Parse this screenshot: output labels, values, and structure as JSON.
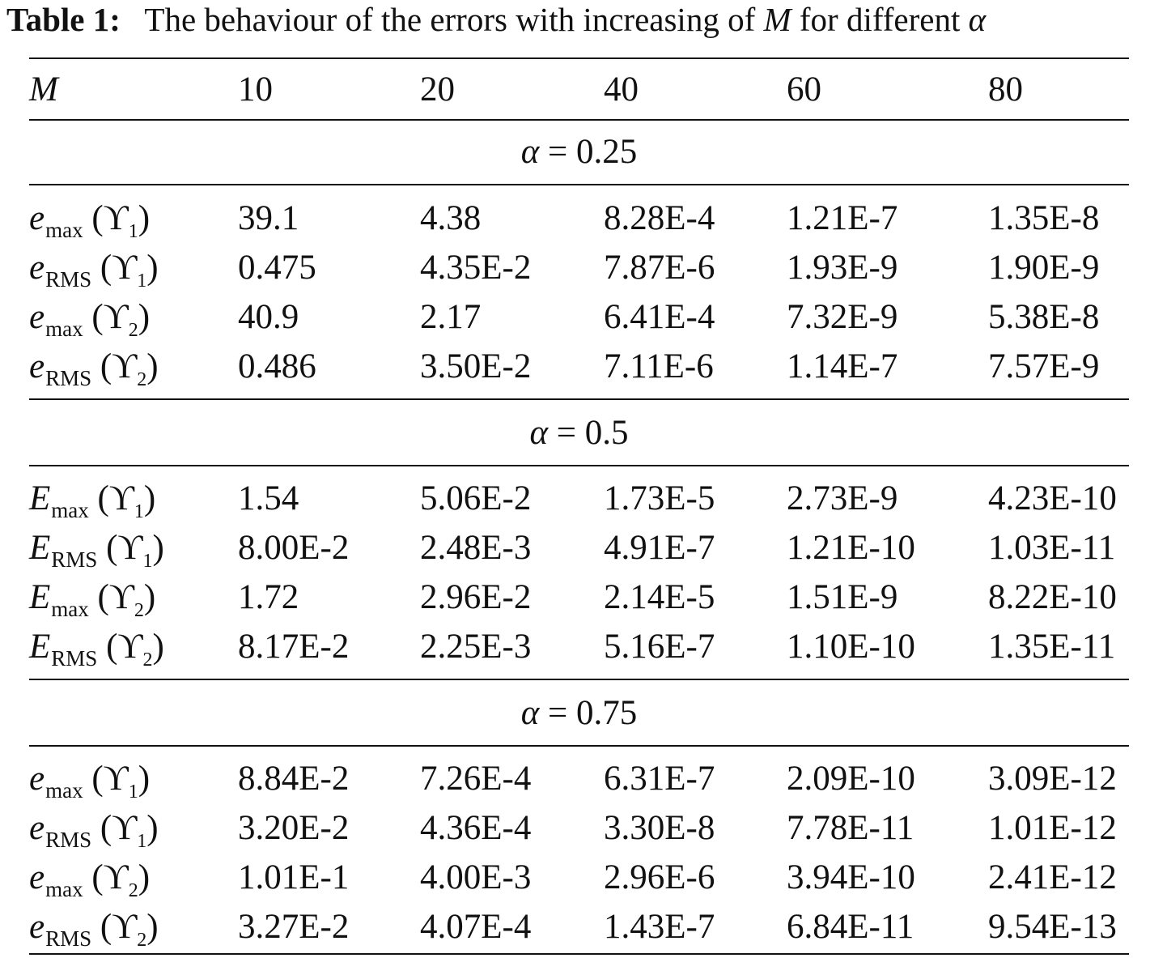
{
  "caption": {
    "label": "Table 1:",
    "text_before": "The behaviour of the errors with increasing of",
    "var_m": "M",
    "text_middle": "for different",
    "var_alpha": "α"
  },
  "header": {
    "m_label": "M",
    "columns": [
      "10",
      "20",
      "40",
      "60",
      "80"
    ]
  },
  "sections": [
    {
      "alpha_symbol": "α",
      "equals": "=",
      "alpha_value": "0.25",
      "rows": [
        {
          "letter": "e",
          "sub": "max",
          "ups": "ϒ",
          "ups_sub": "1",
          "values": [
            "39.1",
            "4.38",
            "8.28E-4",
            "1.21E-7",
            "1.35E-8"
          ]
        },
        {
          "letter": "e",
          "sub": "RMS",
          "ups": "ϒ",
          "ups_sub": "1",
          "values": [
            "0.475",
            "4.35E-2",
            "7.87E-6",
            "1.93E-9",
            "1.90E-9"
          ]
        },
        {
          "letter": "e",
          "sub": "max",
          "ups": "ϒ",
          "ups_sub": "2",
          "values": [
            "40.9",
            "2.17",
            "6.41E-4",
            "7.32E-9",
            "5.38E-8"
          ]
        },
        {
          "letter": "e",
          "sub": "RMS",
          "ups": "ϒ",
          "ups_sub": "2",
          "values": [
            "0.486",
            "3.50E-2",
            "7.11E-6",
            "1.14E-7",
            "7.57E-9"
          ]
        }
      ]
    },
    {
      "alpha_symbol": "α",
      "equals": "=",
      "alpha_value": "0.5",
      "rows": [
        {
          "letter": "E",
          "sub": "max",
          "ups": "ϒ",
          "ups_sub": "1",
          "values": [
            "1.54",
            "5.06E-2",
            "1.73E-5",
            "2.73E-9",
            "4.23E-10"
          ]
        },
        {
          "letter": "E",
          "sub": "RMS",
          "ups": "ϒ",
          "ups_sub": "1",
          "values": [
            "8.00E-2",
            "2.48E-3",
            "4.91E-7",
            "1.21E-10",
            "1.03E-11"
          ]
        },
        {
          "letter": "E",
          "sub": "max",
          "ups": "ϒ",
          "ups_sub": "2",
          "values": [
            "1.72",
            "2.96E-2",
            "2.14E-5",
            "1.51E-9",
            "8.22E-10"
          ]
        },
        {
          "letter": "E",
          "sub": "RMS",
          "ups": "ϒ",
          "ups_sub": "2",
          "values": [
            "8.17E-2",
            "2.25E-3",
            "5.16E-7",
            "1.10E-10",
            "1.35E-11"
          ]
        }
      ]
    },
    {
      "alpha_symbol": "α",
      "equals": "=",
      "alpha_value": "0.75",
      "rows": [
        {
          "letter": "e",
          "sub": "max",
          "ups": "ϒ",
          "ups_sub": "1",
          "values": [
            "8.84E-2",
            "7.26E-4",
            "6.31E-7",
            "2.09E-10",
            "3.09E-12"
          ]
        },
        {
          "letter": "e",
          "sub": "RMS",
          "ups": "ϒ",
          "ups_sub": "1",
          "values": [
            "3.20E-2",
            "4.36E-4",
            "3.30E-8",
            "7.78E-11",
            "1.01E-12"
          ]
        },
        {
          "letter": "e",
          "sub": "max",
          "ups": "ϒ",
          "ups_sub": "2",
          "values": [
            "1.01E-1",
            "4.00E-3",
            "2.96E-6",
            "3.94E-10",
            "2.41E-12"
          ]
        },
        {
          "letter": "e",
          "sub": "RMS",
          "ups": "ϒ",
          "ups_sub": "2",
          "values": [
            "3.27E-2",
            "4.07E-4",
            "1.43E-7",
            "6.84E-11",
            "9.54E-13"
          ]
        }
      ]
    }
  ]
}
